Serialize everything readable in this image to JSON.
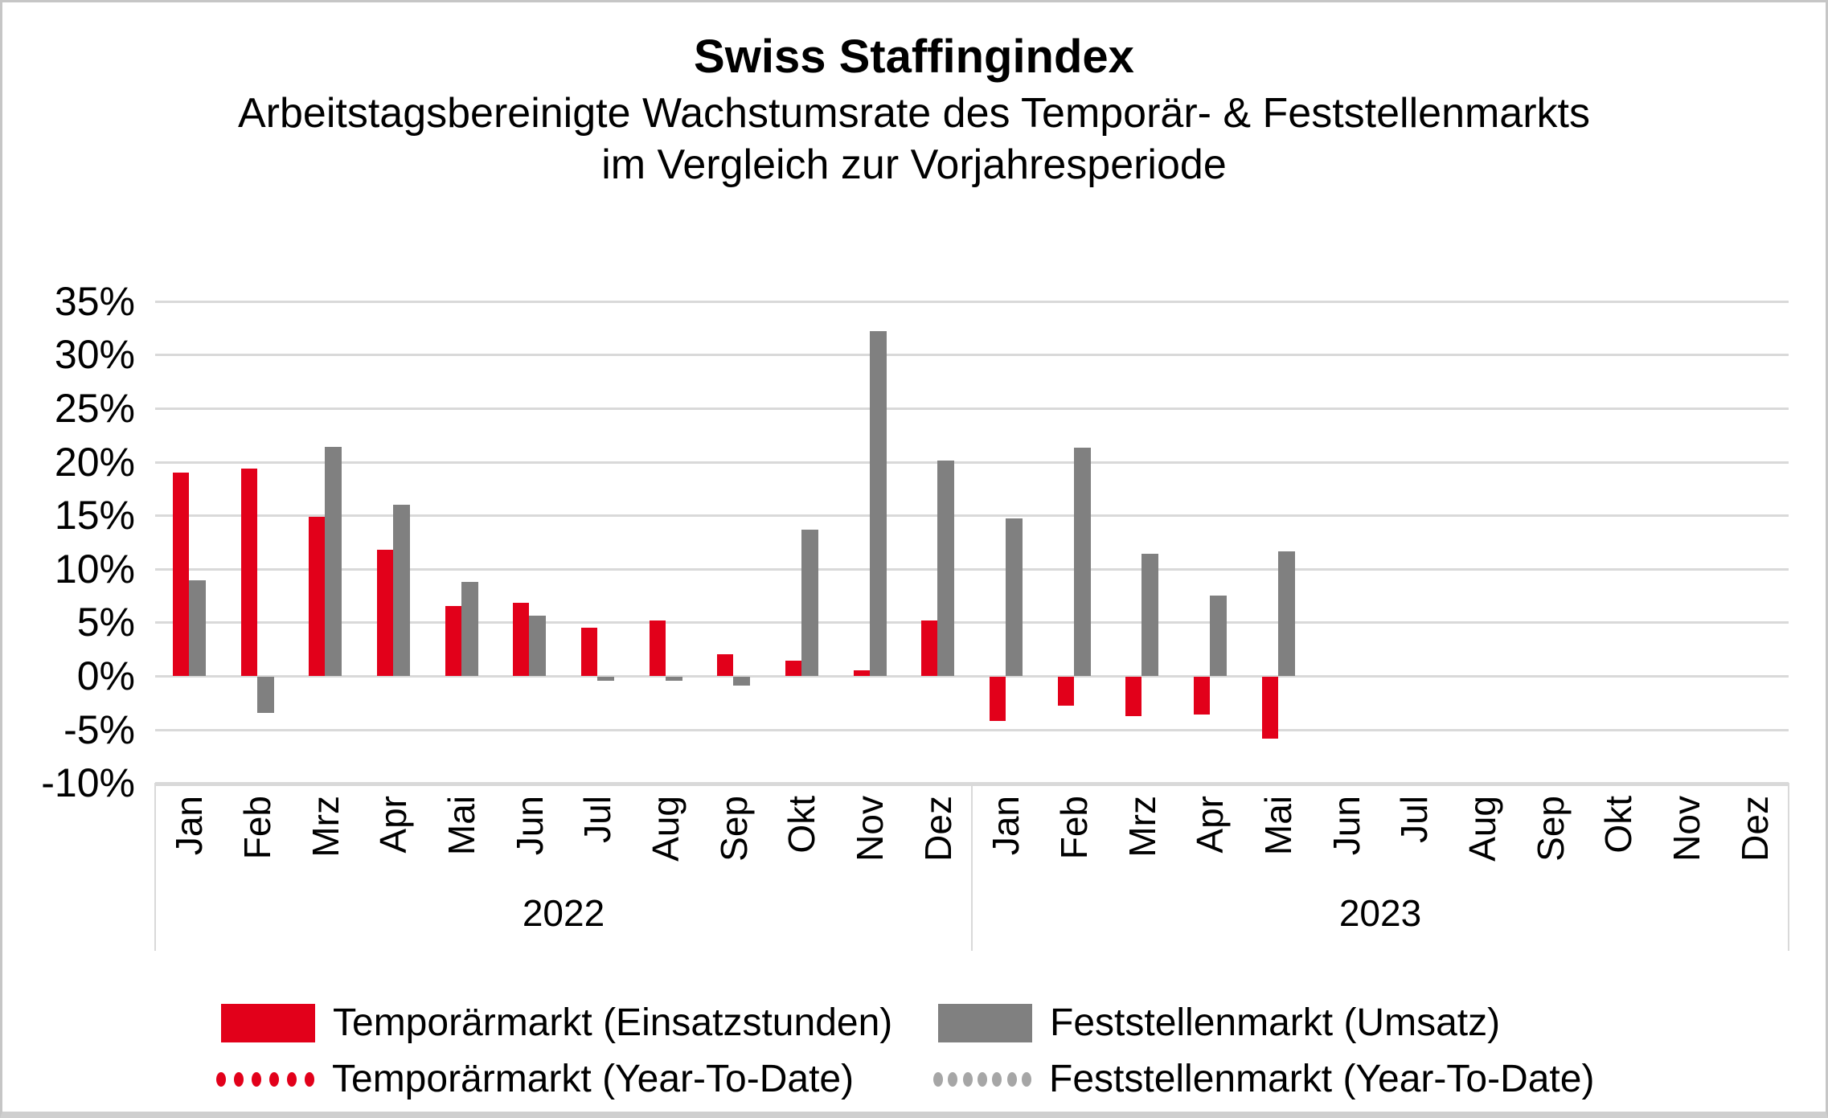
{
  "chart_data": {
    "type": "bar",
    "title": "Swiss Staffingindex",
    "subtitle": [
      "Arbeitstagsbereinigte Wachstumsrate des Temporär- & Feststellenmarkts",
      "im Vergleich zur Vorjahresperiode"
    ],
    "ylim": [
      -10,
      35
    ],
    "ytick_step": 5,
    "ytick_labels": [
      "35%",
      "30%",
      "25%",
      "20%",
      "15%",
      "10%",
      "5%",
      "0%",
      "-5%",
      "-10%"
    ],
    "grid": true,
    "legend_position": "bottom",
    "year_groups": [
      {
        "label": "2022",
        "categories": [
          "Jan",
          "Feb",
          "Mrz",
          "Apr",
          "Mai",
          "Jun",
          "Jul",
          "Aug",
          "Sep",
          "Okt",
          "Nov",
          "Dez"
        ]
      },
      {
        "label": "2023",
        "categories": [
          "Jan",
          "Feb",
          "Mrz",
          "Apr",
          "Mai",
          "Jun",
          "Jul",
          "Aug",
          "Sep",
          "Okt",
          "Nov",
          "Dez"
        ]
      }
    ],
    "series": [
      {
        "name": "Temporärmarkt (Einsatzstunden)",
        "type": "bar",
        "color": "#e2001a",
        "values": [
          19.0,
          19.4,
          14.9,
          11.8,
          6.5,
          6.8,
          4.5,
          5.2,
          2.0,
          1.4,
          0.5,
          5.2,
          -4.1,
          -2.7,
          -3.7,
          -3.5,
          -5.8,
          null,
          null,
          null,
          null,
          null,
          null,
          null
        ]
      },
      {
        "name": "Feststellenmarkt (Umsatz)",
        "type": "bar",
        "color": "#808080",
        "values": [
          8.9,
          -3.4,
          21.4,
          16.0,
          8.8,
          5.6,
          -0.4,
          -0.4,
          -0.8,
          13.7,
          32.2,
          20.1,
          14.7,
          21.3,
          11.4,
          7.5,
          11.6,
          null,
          null,
          null,
          null,
          null,
          null,
          null
        ]
      },
      {
        "name": "Temporärmarkt (Year-To-Date)",
        "type": "line",
        "line_style": "dotted",
        "color": "#e2001a",
        "values": []
      },
      {
        "name": "Feststellenmarkt (Year-To-Date)",
        "type": "line",
        "line_style": "dotted",
        "color": "#a6a6a6",
        "values": []
      }
    ],
    "colors": {
      "temporaermarkt": "#e2001a",
      "feststellenmarkt": "#808080",
      "gridline": "#d9d9d9"
    }
  }
}
